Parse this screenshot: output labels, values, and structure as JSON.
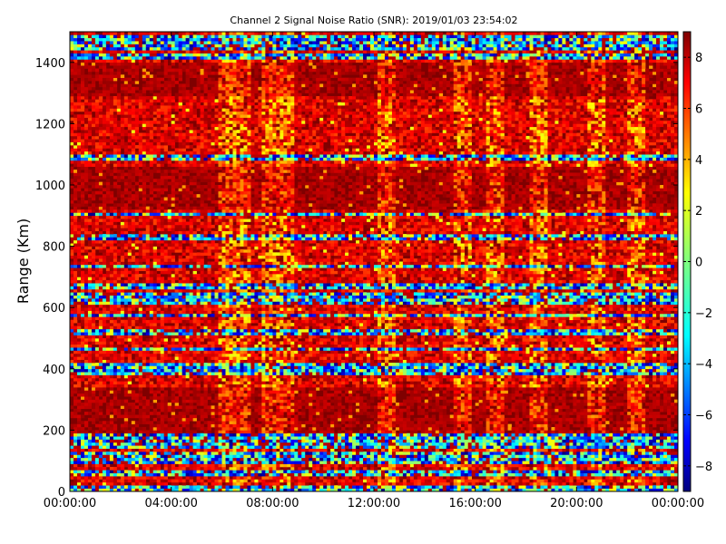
{
  "chart_data": {
    "type": "heatmap",
    "title": "Channel 2 Signal Noise Ratio (SNR): 2019/01/03 23:54:02",
    "xlabel": "",
    "ylabel": "Range (Km)",
    "xlim": [
      "00:00:00",
      "24:00:00"
    ],
    "ylim": [
      0,
      1500
    ],
    "x_ticks": [
      "00:00:00",
      "04:00:00",
      "08:00:00",
      "12:00:00",
      "16:00:00",
      "20:00:00",
      "00:00:00"
    ],
    "y_ticks": [
      "0",
      "200",
      "400",
      "600",
      "800",
      "1000",
      "1200",
      "1400"
    ],
    "colorbar": {
      "range": [
        -9,
        9
      ],
      "ticks": [
        "−8",
        "−6",
        "−4",
        "−2",
        "0",
        "2",
        "4",
        "6",
        "8"
      ],
      "colormap": "jet"
    },
    "grid": false,
    "dominant_value": 9,
    "low_snr_ranges_km": [
      10,
      60,
      100,
      110,
      115,
      125,
      145,
      155,
      165,
      180,
      385,
      395,
      410,
      465,
      515,
      525,
      575,
      620,
      640,
      670,
      735,
      830,
      905,
      1085,
      1090,
      1420,
      1450,
      1470,
      1480
    ],
    "noisy_time_hours": [
      6.2,
      6.8,
      7.9,
      8.5,
      12.5,
      15.5,
      16.8,
      18.5,
      20.8,
      22.3
    ]
  }
}
